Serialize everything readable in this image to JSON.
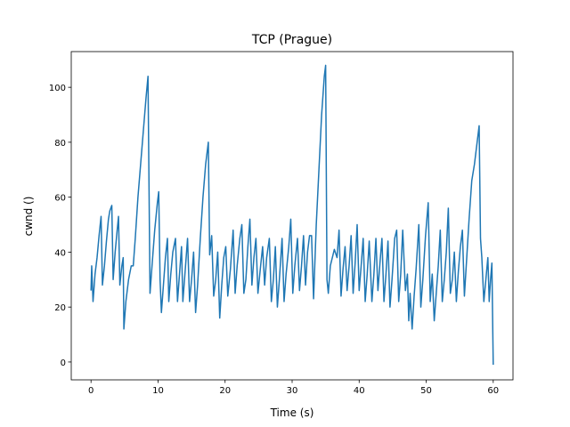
{
  "chart_data": {
    "type": "line",
    "title": "TCP (Prague)",
    "xlabel": "Time (s)",
    "ylabel": "cwnd ()",
    "xlim": [
      -2.95,
      62.95
    ],
    "ylim": [
      -6.5,
      113
    ],
    "xticks": [
      0,
      10,
      20,
      30,
      40,
      50,
      60
    ],
    "yticks": [
      0,
      20,
      40,
      60,
      80,
      100
    ],
    "grid": false,
    "series": [
      {
        "color": "#1f77b4",
        "x": [
          0,
          0.1,
          0.3,
          0.6,
          0.9,
          1.2,
          1.5,
          1.7,
          2.0,
          2.3,
          2.6,
          2.8,
          3.1,
          3.3,
          3.6,
          3.9,
          4.1,
          4.3,
          4.6,
          4.8,
          4.9,
          5.2,
          5.6,
          6.0,
          6.3,
          6.6,
          7.0,
          7.4,
          7.8,
          8.2,
          8.5,
          8.8,
          9.1,
          9.5,
          9.9,
          10.1,
          10.3,
          10.5,
          10.8,
          11.1,
          11.4,
          11.6,
          11.9,
          12.2,
          12.6,
          12.9,
          13.2,
          13.5,
          13.7,
          14.1,
          14.4,
          14.7,
          15.0,
          15.3,
          15.6,
          15.9,
          16.3,
          16.7,
          17.1,
          17.5,
          17.7,
          18.0,
          18.3,
          18.6,
          18.9,
          19.2,
          19.5,
          19.8,
          20.1,
          20.4,
          20.8,
          21.2,
          21.5,
          21.8,
          22.2,
          22.5,
          22.8,
          23.1,
          23.4,
          23.7,
          24.0,
          24.3,
          24.6,
          24.9,
          25.3,
          25.6,
          25.9,
          26.2,
          26.6,
          26.9,
          27.2,
          27.5,
          27.8,
          28.1,
          28.5,
          28.8,
          29.1,
          29.5,
          29.8,
          30.1,
          30.4,
          30.8,
          31.1,
          31.4,
          31.7,
          32.0,
          32.3,
          32.6,
          32.9,
          33.2,
          33.6,
          34.0,
          34.4,
          34.8,
          35.0,
          35.2,
          35.4,
          35.7,
          36.0,
          36.3,
          36.7,
          37.0,
          37.3,
          37.6,
          37.9,
          38.2,
          38.5,
          38.8,
          39.1,
          39.4,
          39.7,
          40.0,
          40.3,
          40.6,
          40.9,
          41.2,
          41.5,
          41.9,
          42.2,
          42.5,
          42.8,
          43.1,
          43.4,
          43.7,
          44.0,
          44.3,
          44.6,
          44.9,
          45.3,
          45.6,
          45.9,
          46.2,
          46.5,
          46.9,
          47.2,
          47.4,
          47.6,
          47.9,
          48.2,
          48.5,
          48.9,
          49.2,
          49.5,
          49.9,
          50.3,
          50.6,
          50.9,
          51.2,
          51.5,
          51.8,
          52.1,
          52.4,
          52.7,
          53.0,
          53.3,
          53.6,
          53.9,
          54.2,
          54.5,
          54.8,
          55.1,
          55.4,
          55.7,
          56.0,
          56.4,
          56.8,
          57.2,
          57.6,
          57.9,
          58.1,
          58.3,
          58.6,
          58.9,
          59.2,
          59.4,
          59.6,
          59.8,
          60.0
        ],
        "values": [
          26,
          35,
          22,
          32,
          38,
          46,
          53,
          28,
          35,
          44,
          52,
          55,
          57,
          30,
          40,
          48,
          53,
          28,
          35,
          38,
          12,
          22,
          30,
          35,
          35,
          45,
          60,
          72,
          84,
          96,
          104,
          25,
          35,
          48,
          58,
          62,
          30,
          18,
          28,
          38,
          45,
          22,
          32,
          40,
          45,
          22,
          32,
          42,
          22,
          35,
          45,
          22,
          30,
          40,
          18,
          28,
          45,
          60,
          72,
          80,
          39,
          46,
          24,
          30,
          40,
          16,
          28,
          38,
          42,
          24,
          34,
          48,
          25,
          35,
          45,
          50,
          25,
          30,
          42,
          52,
          28,
          38,
          45,
          25,
          35,
          42,
          28,
          38,
          45,
          22,
          30,
          42,
          20,
          30,
          45,
          22,
          32,
          42,
          52,
          25,
          35,
          45,
          26,
          35,
          46,
          28,
          40,
          46,
          46,
          23,
          50,
          70,
          90,
          104,
          108,
          30,
          25,
          35,
          38,
          41,
          38,
          48,
          24,
          34,
          42,
          26,
          35,
          46,
          25,
          36,
          50,
          26,
          35,
          45,
          22,
          32,
          44,
          22,
          32,
          45,
          26,
          36,
          45,
          22,
          32,
          44,
          20,
          30,
          45,
          48,
          22,
          32,
          48,
          26,
          32,
          15,
          25,
          12,
          24,
          34,
          50,
          20,
          30,
          46,
          58,
          22,
          32,
          15,
          25,
          35,
          48,
          22,
          30,
          40,
          56,
          25,
          30,
          40,
          22,
          33,
          42,
          48,
          24,
          36,
          52,
          66,
          72,
          80,
          86,
          45,
          38,
          22,
          30,
          38,
          22,
          30,
          36,
          -1
        ]
      }
    ]
  }
}
